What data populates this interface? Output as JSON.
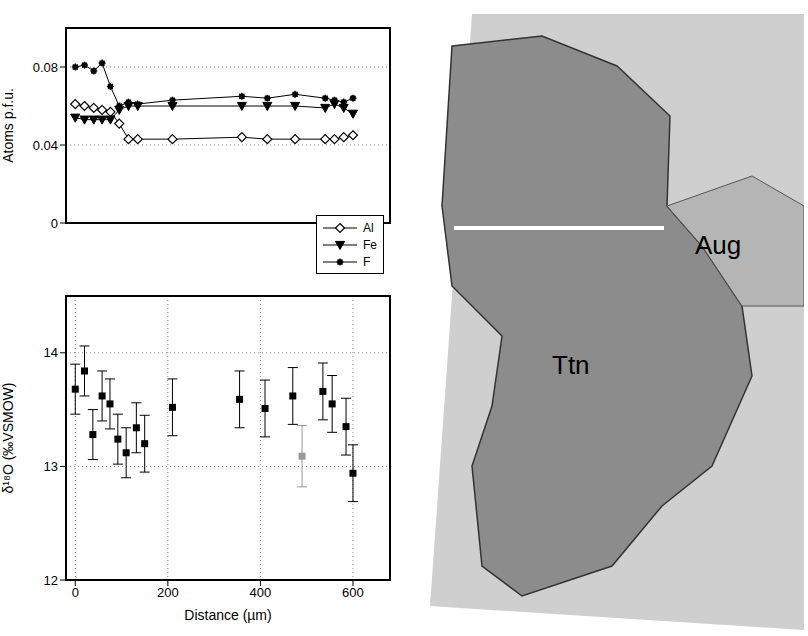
{
  "chart_data": [
    {
      "type": "line",
      "x": [
        0,
        20,
        40,
        58,
        76,
        95,
        115,
        135,
        210,
        360,
        415,
        475,
        540,
        560,
        580,
        600
      ],
      "series": [
        {
          "name": "Al",
          "color": "#000000",
          "marker": "diamond-open",
          "values": [
            0.061,
            0.06,
            0.059,
            0.058,
            0.057,
            0.051,
            0.043,
            0.043,
            0.043,
            0.044,
            0.043,
            0.043,
            0.043,
            0.043,
            0.044,
            0.045
          ]
        },
        {
          "name": "Fe",
          "color": "#000000",
          "marker": "triangle-down",
          "values": [
            0.054,
            0.053,
            0.053,
            0.053,
            0.053,
            0.058,
            0.06,
            0.06,
            0.06,
            0.06,
            0.06,
            0.06,
            0.059,
            0.061,
            0.059,
            0.056
          ]
        },
        {
          "name": "F",
          "color": "#000000",
          "marker": "asterisk",
          "values": [
            0.08,
            0.081,
            0.078,
            0.082,
            0.07,
            0.06,
            0.062,
            0.061,
            0.063,
            0.065,
            0.064,
            0.066,
            0.064,
            0.063,
            0.062,
            0.064
          ]
        }
      ],
      "y_label": "Atoms p.f.u.",
      "xlim": [
        -20,
        680
      ],
      "xticks": [
        0,
        200,
        400,
        600
      ],
      "ylim": [
        0,
        0.1
      ],
      "yticks": [
        0,
        0.04,
        0.08
      ],
      "grid": true,
      "legend": "lower right",
      "tick_labels": "y"
    },
    {
      "type": "scatter",
      "x_label": "Distance (µm)",
      "y_label": "δ¹⁸O (‰VSMOW)",
      "series": [
        {
          "color": "#000000",
          "marker": "square",
          "x": [
            0,
            20,
            38,
            58,
            75,
            92,
            110,
            132,
            150,
            210,
            355,
            410,
            470,
            535,
            555,
            585,
            600
          ],
          "values": [
            13.68,
            13.84,
            13.28,
            13.62,
            13.55,
            13.24,
            13.12,
            13.34,
            13.2,
            13.52,
            13.59,
            13.51,
            13.62,
            13.66,
            13.55,
            13.35,
            12.94
          ],
          "error": [
            0.22,
            0.22,
            0.22,
            0.22,
            0.22,
            0.22,
            0.22,
            0.22,
            0.25,
            0.25,
            0.25,
            0.25,
            0.25,
            0.25,
            0.25,
            0.25,
            0.25
          ]
        },
        {
          "color": "#999999",
          "marker": "square",
          "x": [
            490
          ],
          "values": [
            13.09
          ],
          "error": [
            0.27
          ]
        }
      ],
      "xlim": [
        -20,
        680
      ],
      "xticks": [
        0,
        200,
        400,
        600
      ],
      "ylim": [
        12,
        14.5
      ],
      "yticks": [
        12,
        13,
        14
      ],
      "grid": true
    }
  ],
  "image": {
    "labels": [
      "Aug",
      "Ttn"
    ]
  }
}
